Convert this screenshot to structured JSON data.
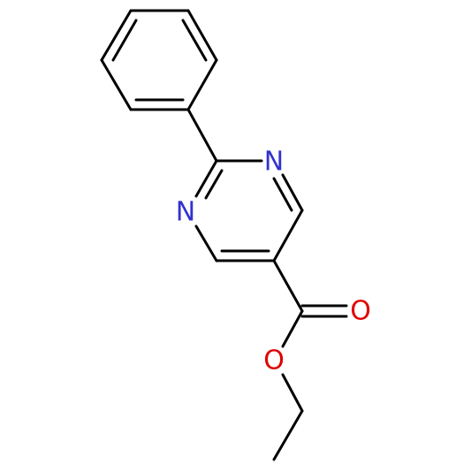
{
  "atoms": [
    {
      "label": "N"
    },
    {
      "label": "N"
    },
    {
      "label": "O"
    },
    {
      "label": "O"
    }
  ]
}
